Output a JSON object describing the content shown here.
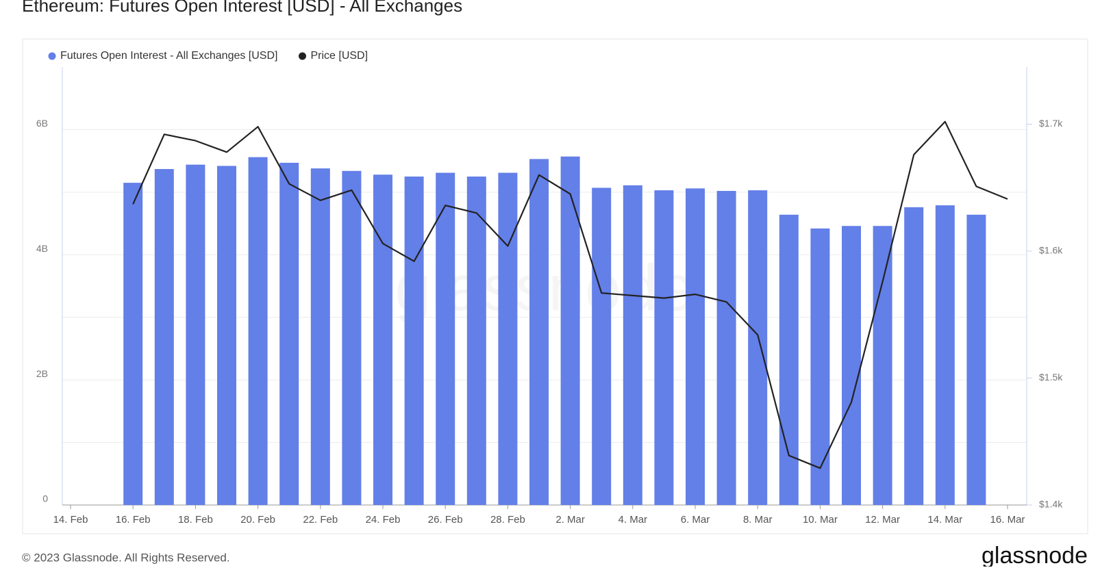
{
  "title": "Ethereum: Futures Open Interest [USD] - All Exchanges",
  "footer": "© 2023 Glassnode. All Rights Reserved.",
  "logo": "glassnode",
  "chart_data": {
    "type": "bar",
    "watermark": "glassnode",
    "categories": [
      "14. Feb",
      null,
      "16. Feb",
      null,
      "18. Feb",
      null,
      "20. Feb",
      null,
      "22. Feb",
      null,
      "24. Feb",
      null,
      "26. Feb",
      null,
      "28. Feb",
      null,
      "2. Mar",
      null,
      "4. Mar",
      null,
      "6. Mar",
      null,
      "8. Mar",
      null,
      "10. Mar",
      null,
      "12. Mar",
      null,
      "14. Mar",
      null,
      "16. Mar"
    ],
    "series": [
      {
        "name": "Futures Open Interest - All Exchanges [USD]",
        "type": "bar",
        "color": "#637fe8",
        "values": [
          null,
          null,
          5150000000,
          5370000000,
          5440000000,
          5420000000,
          5560000000,
          5470000000,
          5380000000,
          5340000000,
          5280000000,
          5250000000,
          5310000000,
          5250000000,
          5310000000,
          5530000000,
          5570000000,
          5070000000,
          5110000000,
          5030000000,
          5060000000,
          5020000000,
          5030000000,
          4640000000,
          4420000000,
          4460000000,
          4460000000,
          4760000000,
          4790000000,
          4640000000,
          null
        ]
      },
      {
        "name": "Price [USD]",
        "type": "line",
        "axis": "y2",
        "color": "#222222",
        "values": [
          null,
          null,
          1637,
          1692,
          1687,
          1678,
          1698,
          1653,
          1640,
          1648,
          1606,
          1592,
          1636,
          1630,
          1604,
          1660,
          1645,
          1567,
          1565,
          1563,
          1566,
          1560,
          1534,
          1439,
          1429,
          1481,
          1576,
          1676,
          1702,
          1651,
          1641
        ]
      }
    ],
    "ylim": [
      0,
      7000000000
    ],
    "yticks": [
      0,
      {
        "value": 2000000000,
        "label": "2B"
      },
      {
        "value": 4000000000,
        "label": "4B"
      },
      {
        "value": 6000000000,
        "label": "6B"
      }
    ],
    "y_minor_ticks": [
      1000000000,
      3000000000,
      5000000000
    ],
    "y2lim": [
      1400,
      1745
    ],
    "y2ticks": [
      {
        "value": 1400,
        "label": "$1.4k"
      },
      {
        "value": 1500,
        "label": "$1.5k"
      },
      {
        "value": 1600,
        "label": "$1.6k"
      },
      {
        "value": 1700,
        "label": "$1.7k"
      }
    ],
    "grid": true,
    "legend": "top-left"
  }
}
